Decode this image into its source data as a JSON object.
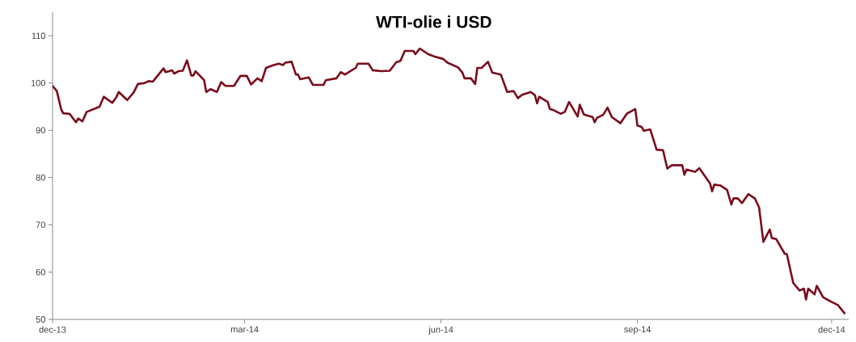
{
  "chart_data": {
    "type": "line",
    "title": "WTI-olie i USD",
    "x": [
      "2013-12-01",
      "2013-12-03",
      "2013-12-05",
      "2013-12-06",
      "2013-12-09",
      "2013-12-12",
      "2013-12-13",
      "2013-12-15",
      "2013-12-17",
      "2013-12-23",
      "2013-12-25",
      "2013-12-29",
      "2013-12-31",
      "2014-01-01",
      "2014-01-05",
      "2014-01-08",
      "2014-01-10",
      "2014-01-13",
      "2014-01-15",
      "2014-01-17",
      "2014-01-22",
      "2014-01-23",
      "2014-01-26",
      "2014-01-27",
      "2014-01-29",
      "2014-01-31",
      "2014-02-02",
      "2014-02-04",
      "2014-02-05",
      "2014-02-06",
      "2014-02-10",
      "2014-02-11",
      "2014-02-13",
      "2014-02-16",
      "2014-02-18",
      "2014-02-20",
      "2014-02-24",
      "2014-02-27",
      "2014-03-02",
      "2014-03-04",
      "2014-03-07",
      "2014-03-09",
      "2014-03-11",
      "2014-03-14",
      "2014-03-17",
      "2014-03-19",
      "2014-03-20",
      "2014-03-23",
      "2014-03-25",
      "2014-03-26",
      "2014-03-27",
      "2014-03-31",
      "2014-04-02",
      "2014-04-07",
      "2014-04-08",
      "2014-04-13",
      "2014-04-15",
      "2014-04-17",
      "2014-04-22",
      "2014-04-23",
      "2014-04-28",
      "2014-04-30",
      "2014-05-04",
      "2014-05-08",
      "2014-05-11",
      "2014-05-13",
      "2014-05-15",
      "2014-05-19",
      "2014-05-20",
      "2014-05-22",
      "2014-05-26",
      "2014-05-29",
      "2014-06-02",
      "2014-06-04",
      "2014-06-09",
      "2014-06-11",
      "2014-06-12",
      "2014-06-15",
      "2014-06-17",
      "2014-06-18",
      "2014-06-20",
      "2014-06-23",
      "2014-06-25",
      "2014-06-29",
      "2014-07-02",
      "2014-07-05",
      "2014-07-07",
      "2014-07-09",
      "2014-07-13",
      "2014-07-15",
      "2014-07-16",
      "2014-07-17",
      "2014-07-21",
      "2014-07-22",
      "2014-07-24",
      "2014-07-27",
      "2014-07-29",
      "2014-07-31",
      "2014-08-04",
      "2014-08-05",
      "2014-08-07",
      "2014-08-11",
      "2014-08-12",
      "2014-08-13",
      "2014-08-16",
      "2014-08-18",
      "2014-08-20",
      "2014-08-24",
      "2014-08-26",
      "2014-08-27",
      "2014-08-31",
      "2014-09-01",
      "2014-09-03",
      "2014-09-04",
      "2014-09-07",
      "2014-09-10",
      "2014-09-13",
      "2014-09-15",
      "2014-09-17",
      "2014-09-22",
      "2014-09-23",
      "2014-09-24",
      "2014-09-28",
      "2014-09-30",
      "2014-10-05",
      "2014-10-06",
      "2014-10-07",
      "2014-10-10",
      "2014-10-13",
      "2014-10-15",
      "2014-10-16",
      "2014-10-18",
      "2014-10-20",
      "2014-10-23",
      "2014-10-26",
      "2014-10-28",
      "2014-10-30",
      "2014-11-02",
      "2014-11-03",
      "2014-11-05",
      "2014-11-09",
      "2014-11-10",
      "2014-11-13",
      "2014-11-16",
      "2014-11-18",
      "2014-11-19",
      "2014-11-20",
      "2014-11-23",
      "2014-11-24",
      "2014-11-27",
      "2014-11-30",
      "2014-12-04",
      "2014-12-07"
    ],
    "series": [
      {
        "color": "#7a0c1c",
        "values": [
          99.4,
          98.3,
          94.5,
          93.6,
          93.5,
          91.7,
          92.5,
          91.9,
          93.9,
          95.0,
          97.1,
          95.8,
          97.1,
          98.1,
          96.4,
          98.0,
          99.8,
          100.0,
          100.4,
          100.3,
          103.1,
          102.3,
          102.7,
          102.0,
          102.5,
          102.6,
          104.8,
          101.6,
          101.6,
          102.5,
          100.6,
          98.1,
          98.7,
          98.1,
          100.2,
          99.4,
          99.4,
          101.5,
          101.5,
          99.7,
          101.0,
          100.4,
          103.2,
          103.7,
          104.1,
          103.8,
          104.3,
          104.5,
          101.8,
          101.8,
          100.8,
          101.2,
          99.6,
          99.6,
          100.6,
          101.0,
          102.3,
          101.8,
          103.2,
          104.1,
          104.1,
          102.7,
          102.5,
          102.6,
          104.4,
          104.7,
          106.8,
          106.8,
          106.1,
          107.3,
          106.1,
          105.6,
          105.1,
          104.3,
          103.3,
          102.2,
          101.0,
          101.0,
          99.8,
          103.2,
          103.2,
          104.5,
          102.2,
          101.8,
          98.1,
          98.3,
          96.8,
          97.5,
          98.1,
          97.4,
          95.7,
          97.1,
          96.0,
          94.5,
          94.2,
          93.5,
          93.9,
          96.0,
          92.9,
          95.4,
          93.3,
          92.8,
          91.7,
          92.6,
          93.3,
          94.8,
          92.8,
          91.5,
          92.8,
          93.5,
          94.5,
          91.0,
          90.7,
          89.9,
          90.2,
          85.9,
          85.8,
          81.9,
          82.6,
          82.6,
          80.6,
          81.7,
          81.2,
          82.0,
          78.8,
          77.1,
          78.5,
          78.3,
          77.4,
          74.3,
          75.6,
          75.6,
          74.6,
          76.5,
          75.6,
          73.7,
          66.4,
          69.0,
          67.2,
          67.0,
          63.9,
          63.8,
          57.7,
          56.1,
          56.5,
          54.2,
          56.5,
          55.3,
          57.1,
          54.7,
          53.9,
          53.0,
          51.3
        ]
      }
    ],
    "xlim": [
      "2013-12-01",
      "2014-12-09"
    ],
    "xticks": [
      {
        "value": "2013-12-01",
        "label": "dec-13"
      },
      {
        "value": "2014-03-01",
        "label": "mar-14"
      },
      {
        "value": "2014-06-01",
        "label": "jun-14"
      },
      {
        "value": "2014-09-01",
        "label": "sep-14"
      },
      {
        "value": "2014-12-01",
        "label": "dec-14"
      }
    ],
    "ylim": [
      50,
      115
    ],
    "yticks": [
      50,
      60,
      70,
      80,
      90,
      100,
      110
    ]
  }
}
